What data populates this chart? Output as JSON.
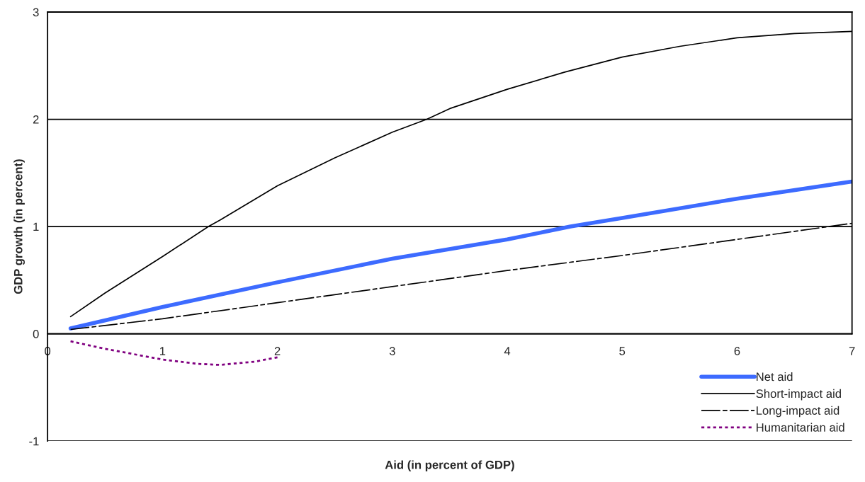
{
  "chart_data": {
    "type": "line",
    "xlabel": "Aid (in percent of GDP)",
    "ylabel": "GDP growth (in percent)",
    "xlim": [
      0,
      7
    ],
    "ylim": [
      -1,
      3
    ],
    "xticks": [
      0,
      1,
      2,
      3,
      4,
      5,
      6,
      7
    ],
    "yticks": [
      -1,
      0,
      1,
      2,
      3
    ],
    "grid": "y",
    "legend": "bottom right",
    "series": [
      {
        "name": "Net aid",
        "color": "#3d6bff",
        "line_style": "solid",
        "x": [
          0.2,
          1,
          2,
          3,
          4,
          4.55,
          5,
          6,
          7
        ],
        "values": [
          0.05,
          0.25,
          0.48,
          0.7,
          0.88,
          1.0,
          1.08,
          1.26,
          1.42
        ]
      },
      {
        "name": "Short-impact aid",
        "color": "#000000",
        "line_style": "solid",
        "x": [
          0.2,
          0.5,
          1,
          1.4,
          1.5,
          2,
          2.5,
          3,
          3.3,
          3.5,
          4,
          4.5,
          5,
          5.5,
          6,
          6.5,
          7
        ],
        "values": [
          0.16,
          0.38,
          0.72,
          1.0,
          1.06,
          1.38,
          1.64,
          1.88,
          2.0,
          2.1,
          2.28,
          2.44,
          2.58,
          2.68,
          2.76,
          2.8,
          2.82
        ]
      },
      {
        "name": "Long-impact aid",
        "color": "#000000",
        "line_style": "dashed",
        "x": [
          0.2,
          1,
          2,
          3,
          4,
          5,
          6,
          7
        ],
        "values": [
          0.04,
          0.14,
          0.29,
          0.44,
          0.59,
          0.73,
          0.88,
          1.03
        ]
      },
      {
        "name": "Humanitarian aid",
        "color": "#800080",
        "line_style": "dotted",
        "x": [
          0.2,
          0.5,
          1,
          1.3,
          1.5,
          1.8,
          2
        ],
        "values": [
          -0.07,
          -0.14,
          -0.24,
          -0.28,
          -0.29,
          -0.26,
          -0.22
        ]
      }
    ]
  }
}
